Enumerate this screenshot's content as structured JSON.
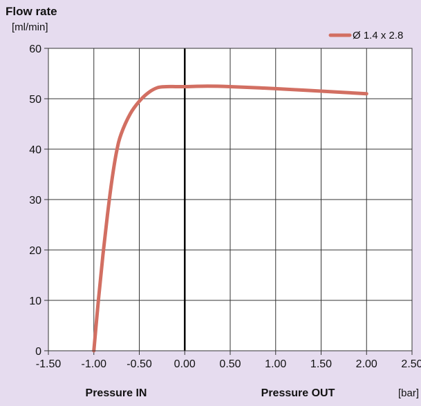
{
  "chart_data": {
    "type": "line",
    "title": "Flow rate",
    "ylabel": "[ml/min]",
    "xlabel_left": "Pressure IN",
    "xlabel_right": "Pressure OUT",
    "xunit": "[bar]",
    "xlim": [
      -1.5,
      2.5
    ],
    "ylim": [
      0,
      60
    ],
    "x_ticks": [
      -1.5,
      -1.0,
      -0.5,
      0.0,
      0.5,
      1.0,
      1.5,
      2.0,
      2.5
    ],
    "x_tick_labels": [
      "-1.50",
      "-1.00",
      "-0.50",
      "0.00",
      "0.50",
      "1.00",
      "1.50",
      "2.00",
      "2.50"
    ],
    "y_ticks": [
      0,
      10,
      20,
      30,
      40,
      50,
      60
    ],
    "y_tick_labels": [
      "0",
      "10",
      "20",
      "30",
      "40",
      "50",
      "60"
    ],
    "grid": true,
    "legend_position": "top-right",
    "series": [
      {
        "name": "Ø 1.4 x 2.8",
        "color": "#d26f62",
        "x": [
          -1.0,
          -0.95,
          -0.9,
          -0.85,
          -0.8,
          -0.75,
          -0.7,
          -0.6,
          -0.5,
          -0.4,
          -0.3,
          -0.2,
          -0.1,
          0.0,
          0.25,
          0.5,
          1.0,
          1.5,
          2.0
        ],
        "y": [
          0,
          10,
          19,
          27,
          34,
          39.5,
          43,
          47,
          49.5,
          51.2,
          52.2,
          52.4,
          52.4,
          52.4,
          52.5,
          52.4,
          52.0,
          51.5,
          51.0
        ]
      }
    ]
  },
  "colors": {
    "background": "#e6dcef",
    "plot_background": "#ffffff",
    "grid": "#333333",
    "zero_line": "#000000"
  }
}
